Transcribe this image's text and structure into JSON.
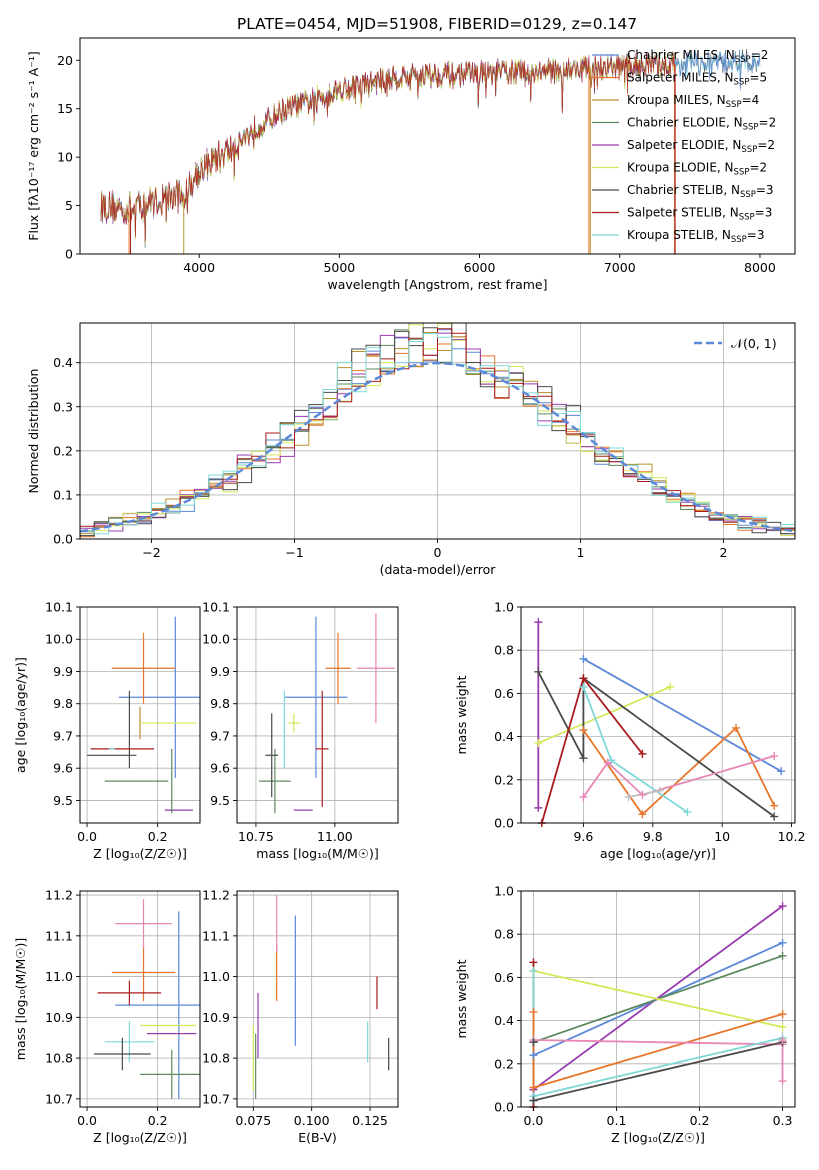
{
  "figure_title": "PLATE=0454, MJD=51908, FIBERID=0129, z=0.147",
  "colors": [
    "#5b88d8",
    "#e8752a",
    "#b8912e",
    "#5e8a5e",
    "#9a3bb0",
    "#d4e85a",
    "#4a4a4a",
    "#a81c1c",
    "#7fd8d8"
  ],
  "chart_data": [
    {
      "id": "spectrum",
      "type": "line",
      "xlabel": "wavelength [Angstrom, rest frame]",
      "ylabel": "Flux [fλ10⁻¹⁷ erg cm⁻² s⁻¹ A⁻¹]",
      "xlim": [
        3150,
        8250
      ],
      "ylim": [
        0,
        22.3
      ],
      "xticks": [
        4000,
        5000,
        6000,
        7000,
        8000
      ],
      "yticks": [
        0,
        5,
        10,
        15,
        20
      ],
      "grid": false,
      "legend_placement": "top-right",
      "series": [
        {
          "name": "Chabrier MILES, N",
          "sub": "SSP",
          "suffix": "=2"
        },
        {
          "name": "Salpeter MILES, N",
          "sub": "SSP",
          "suffix": "=5"
        },
        {
          "name": "Kroupa MILES, N",
          "sub": "SSP",
          "suffix": "=4"
        },
        {
          "name": "Chabrier ELODIE, N",
          "sub": "SSP",
          "suffix": "=2"
        },
        {
          "name": "Salpeter ELODIE, N",
          "sub": "SSP",
          "suffix": "=2"
        },
        {
          "name": "Kroupa ELODIE, N",
          "sub": "SSP",
          "suffix": "=2"
        },
        {
          "name": "Chabrier STELIB, N",
          "sub": "SSP",
          "suffix": "=3"
        },
        {
          "name": "Salpeter STELIB, N",
          "sub": "SSP",
          "suffix": "=3"
        },
        {
          "name": "Kroupa STELIB, N",
          "sub": "SSP",
          "suffix": "=3"
        }
      ],
      "continuum": {
        "x": [
          3300,
          3500,
          3700,
          3900,
          4000,
          4200,
          4400,
          4600,
          4800,
          5000,
          5200,
          5400,
          5600,
          5800,
          6000,
          6200,
          6400,
          6600,
          6800,
          7000,
          7200,
          7400,
          7600,
          7800,
          8000
        ],
        "y": [
          5.0,
          4.6,
          5.6,
          6.2,
          8.8,
          10.5,
          13.0,
          14.8,
          15.8,
          17.0,
          17.5,
          18.2,
          18.5,
          18.5,
          18.6,
          18.8,
          18.8,
          19.0,
          19.2,
          19.3,
          19.5,
          19.6,
          19.7,
          19.8,
          19.9
        ]
      },
      "cut_ranges": [
        [
          3300,
          3500
        ],
        [
          3300,
          3890
        ],
        [
          3300,
          6780
        ],
        [
          7390,
          8000
        ]
      ]
    },
    {
      "id": "residuals",
      "type": "step",
      "xlabel": "(data-model)/error",
      "ylabel": "Normed distribution",
      "xlim": [
        -2.5,
        2.5
      ],
      "ylim": [
        0,
        0.49
      ],
      "xticks": [
        -2,
        -1,
        0,
        1,
        2
      ],
      "yticks": [
        0.0,
        0.1,
        0.2,
        0.3,
        0.4
      ],
      "grid": true,
      "legend": "𝒩(0, 1)",
      "legend_placement": "top-right",
      "bin_width": 0.1
    },
    {
      "id": "age_vs_Z",
      "type": "errorbar",
      "xlabel": "Z [log₁₀(Z/Z☉)]",
      "ylabel": "age  [log₁₀(age/yr)]",
      "xlim": [
        -0.02,
        0.32
      ],
      "ylim": [
        9.43,
        10.1
      ],
      "xticks": [
        0.0,
        0.2
      ],
      "yticks": [
        9.5,
        9.6,
        9.7,
        9.8,
        9.9,
        10.0,
        10.1
      ],
      "grid": true,
      "points": [
        {
          "c": 0,
          "x": 0.25,
          "y": 9.82,
          "xe": 0.16,
          "ye": 0.25
        },
        {
          "c": 1,
          "x": 0.16,
          "y": 9.91,
          "xe": 0.09,
          "ye": 0.11
        },
        {
          "c": 2,
          "x": 0.15,
          "y": 9.74,
          "xe": 0.0,
          "ye": 0.05
        },
        {
          "c": 3,
          "x": 0.14,
          "y": 9.56,
          "xe": 0.09,
          "ye": 0.0
        },
        {
          "c": 4,
          "x": 0.26,
          "y": 9.47,
          "xe": 0.04,
          "ye": 0.0
        },
        {
          "c": 5,
          "x": 0.23,
          "y": 9.74,
          "xe": 0.08,
          "ye": 0.0
        },
        {
          "c": 6,
          "x": 0.12,
          "y": 9.72,
          "xe": 0.0,
          "ye": 0.12
        },
        {
          "c": 7,
          "x": 0.1,
          "y": 9.66,
          "xe": 0.09,
          "ye": 0.0
        },
        {
          "c": 8,
          "x": 0.07,
          "y": 9.66,
          "xe": 0.0,
          "ye": 0.0
        },
        {
          "c": 6,
          "x": 0.07,
          "y": 9.64,
          "xe": 0.07,
          "ye": 0.0
        },
        {
          "c": 3,
          "x": 0.24,
          "y": 9.56,
          "xe": 0.0,
          "ye": 0.1
        }
      ]
    },
    {
      "id": "age_vs_mass",
      "type": "errorbar",
      "xlabel": "mass [log₁₀(M/M☉)]",
      "ylabel": "",
      "xlim": [
        10.69,
        11.2
      ],
      "ylim": [
        9.43,
        10.1
      ],
      "xticks": [
        10.75,
        11.0
      ],
      "xtick_labels": [
        "10.75",
        "11.00"
      ],
      "yticks": [
        9.5,
        9.6,
        9.7,
        9.8,
        9.9,
        10.0,
        10.1
      ],
      "grid": true,
      "points": [
        {
          "c": 0,
          "x": 10.94,
          "y": 9.82,
          "xe": 0.1,
          "ye": 0.25
        },
        {
          "c": 1,
          "x": 11.01,
          "y": 9.91,
          "xe": 0.04,
          "ye": 0.11
        },
        {
          "c": 9,
          "x": 11.13,
          "y": 9.91,
          "xe": 0.06,
          "ye": 0.17
        },
        {
          "c": 5,
          "x": 10.87,
          "y": 9.74,
          "xe": 0.02,
          "ye": 0.03
        },
        {
          "c": 3,
          "x": 10.81,
          "y": 9.56,
          "xe": 0.05,
          "ye": 0.1
        },
        {
          "c": 8,
          "x": 10.84,
          "y": 9.72,
          "xe": 0.0,
          "ye": 0.12
        },
        {
          "c": 6,
          "x": 10.8,
          "y": 9.64,
          "xe": 0.02,
          "ye": 0.13
        },
        {
          "c": 7,
          "x": 10.96,
          "y": 9.66,
          "xe": 0.02,
          "ye": 0.18
        },
        {
          "c": 4,
          "x": 10.9,
          "y": 9.47,
          "xe": 0.03,
          "ye": 0.0
        }
      ]
    },
    {
      "id": "weight_vs_age",
      "type": "line",
      "xlabel": "age  [log₁₀(age/yr)]",
      "ylabel": "mass weight",
      "xlim": [
        9.42,
        10.21
      ],
      "ylim": [
        0,
        1.0
      ],
      "xticks": [
        9.6,
        9.8,
        10.0,
        10.2
      ],
      "yticks": [
        0.0,
        0.2,
        0.4,
        0.6,
        0.8,
        1.0
      ],
      "grid": true,
      "series": [
        {
          "c": 0,
          "x": [
            9.6,
            10.17
          ],
          "y": [
            0.76,
            0.24
          ]
        },
        {
          "c": 1,
          "x": [
            9.6,
            9.77,
            10.04,
            10.15
          ],
          "y": [
            0.43,
            0.04,
            0.44,
            0.08
          ]
        },
        {
          "c": 4,
          "x": [
            9.47,
            9.47
          ],
          "y": [
            0.93,
            0.07
          ]
        },
        {
          "c": 5,
          "x": [
            9.47,
            9.85
          ],
          "y": [
            0.37,
            0.63
          ]
        },
        {
          "c": 6,
          "x": [
            9.47,
            9.6,
            9.6,
            10.15
          ],
          "y": [
            0.7,
            0.3,
            0.67,
            0.03
          ]
        },
        {
          "c": 7,
          "x": [
            9.48,
            9.6,
            9.77
          ],
          "y": [
            0.0,
            0.67,
            0.32
          ]
        },
        {
          "c": 8,
          "x": [
            9.6,
            9.68,
            9.9
          ],
          "y": [
            0.63,
            0.29,
            0.05
          ]
        },
        {
          "c": 9,
          "x": [
            9.6,
            9.67,
            9.77,
            10.15
          ],
          "y": [
            0.12,
            0.28,
            0.13,
            0.31
          ]
        },
        {
          "c": 10,
          "x": [
            9.73,
            9.82
          ],
          "y": [
            0.12,
            0.15
          ]
        }
      ]
    },
    {
      "id": "mass_vs_Z",
      "type": "errorbar",
      "xlabel": "Z [log₁₀(Z/Z☉)]",
      "ylabel": "mass [log₁₀(M/M☉)]",
      "xlim": [
        -0.02,
        0.32
      ],
      "ylim": [
        10.68,
        11.21
      ],
      "xticks": [
        0.0,
        0.2
      ],
      "yticks": [
        10.7,
        10.8,
        10.9,
        11.0,
        11.1,
        11.2
      ],
      "grid": true,
      "points": [
        {
          "c": 0,
          "x": 0.26,
          "y": 10.93,
          "xe": 0.18,
          "ye": 0.23
        },
        {
          "c": 1,
          "x": 0.16,
          "y": 11.01,
          "xe": 0.09,
          "ye": 0.07
        },
        {
          "c": 9,
          "x": 0.16,
          "y": 11.13,
          "xe": 0.08,
          "ye": 0.06
        },
        {
          "c": 7,
          "x": 0.12,
          "y": 10.96,
          "xe": 0.09,
          "ye": 0.03
        },
        {
          "c": 5,
          "x": 0.23,
          "y": 10.88,
          "xe": 0.08,
          "ye": 0.0
        },
        {
          "c": 4,
          "x": 0.24,
          "y": 10.86,
          "xe": 0.07,
          "ye": 0.0
        },
        {
          "c": 8,
          "x": 0.12,
          "y": 10.84,
          "xe": 0.07,
          "ye": 0.05
        },
        {
          "c": 6,
          "x": 0.1,
          "y": 10.81,
          "xe": 0.08,
          "ye": 0.04
        },
        {
          "c": 3,
          "x": 0.24,
          "y": 10.76,
          "xe": 0.09,
          "ye": 0.06
        }
      ]
    },
    {
      "id": "mass_vs_ebv",
      "type": "errorbar",
      "xlabel": "E(B-V)",
      "ylabel": "",
      "xlim": [
        0.068,
        0.137
      ],
      "ylim": [
        10.68,
        11.21
      ],
      "xticks": [
        0.075,
        0.1,
        0.125
      ],
      "xtick_labels": [
        "0.075",
        "0.100",
        "0.125"
      ],
      "yticks": [
        10.7,
        10.8,
        10.9,
        11.0,
        11.1,
        11.2
      ],
      "grid": true,
      "points": [
        {
          "c": 0,
          "x": 0.093,
          "y": 10.99,
          "xe": 0.0,
          "ye": 0.16
        },
        {
          "c": 1,
          "x": 0.085,
          "y": 11.01,
          "xe": 0.0,
          "ye": 0.07
        },
        {
          "c": 9,
          "x": 0.085,
          "y": 11.13,
          "xe": 0.0,
          "ye": 0.07
        },
        {
          "c": 4,
          "x": 0.077,
          "y": 10.88,
          "xe": 0.0,
          "ye": 0.08
        },
        {
          "c": 5,
          "x": 0.075,
          "y": 10.8,
          "xe": 0.0,
          "ye": 0.08
        },
        {
          "c": 3,
          "x": 0.076,
          "y": 10.78,
          "xe": 0.0,
          "ye": 0.08
        },
        {
          "c": 8,
          "x": 0.124,
          "y": 10.84,
          "xe": 0.0,
          "ye": 0.05
        },
        {
          "c": 7,
          "x": 0.128,
          "y": 10.96,
          "xe": 0.0,
          "ye": 0.04
        },
        {
          "c": 6,
          "x": 0.133,
          "y": 10.81,
          "xe": 0.0,
          "ye": 0.04
        }
      ]
    },
    {
      "id": "weight_vs_Z",
      "type": "line",
      "xlabel": "Z [log₁₀(Z/Z☉)]",
      "ylabel": "mass weight",
      "xlim": [
        -0.015,
        0.315
      ],
      "ylim": [
        0,
        1.0
      ],
      "xticks": [
        0.0,
        0.1,
        0.2,
        0.3
      ],
      "yticks": [
        0.0,
        0.2,
        0.4,
        0.6,
        0.8,
        1.0
      ],
      "grid": true,
      "series": [
        {
          "c": 4,
          "x": [
            0.0,
            0.3
          ],
          "y": [
            0.08,
            0.93
          ]
        },
        {
          "c": 0,
          "x": [
            0.0,
            0.3
          ],
          "y": [
            0.24,
            0.76
          ]
        },
        {
          "c": 3,
          "x": [
            0.0,
            0.3
          ],
          "y": [
            0.3,
            0.7
          ]
        },
        {
          "c": 5,
          "x": [
            0.0,
            0.3
          ],
          "y": [
            0.63,
            0.37
          ]
        },
        {
          "c": 1,
          "x": [
            0.0,
            0.3
          ],
          "y": [
            0.09,
            0.43
          ]
        },
        {
          "c": 9,
          "x": [
            0.0,
            0.3
          ],
          "y": [
            0.31,
            0.29
          ]
        },
        {
          "c": 8,
          "x": [
            0.0,
            0.3
          ],
          "y": [
            0.05,
            0.32
          ]
        },
        {
          "c": 6,
          "x": [
            0.0,
            0.3
          ],
          "y": [
            0.03,
            0.3
          ]
        },
        {
          "c": 7,
          "x": [
            0.0,
            0.0
          ],
          "y": [
            0.0,
            0.67
          ]
        },
        {
          "c": 8,
          "x": [
            0.0,
            0.0
          ],
          "y": [
            0.05,
            0.63
          ]
        },
        {
          "c": 6,
          "x": [
            0.0,
            0.0
          ],
          "y": [
            0.03,
            0.3
          ]
        },
        {
          "c": 9,
          "x": [
            0.3,
            0.3
          ],
          "y": [
            0.12,
            0.31
          ]
        },
        {
          "c": 1,
          "x": [
            0.0,
            0.0
          ],
          "y": [
            0.09,
            0.44
          ]
        }
      ]
    }
  ]
}
